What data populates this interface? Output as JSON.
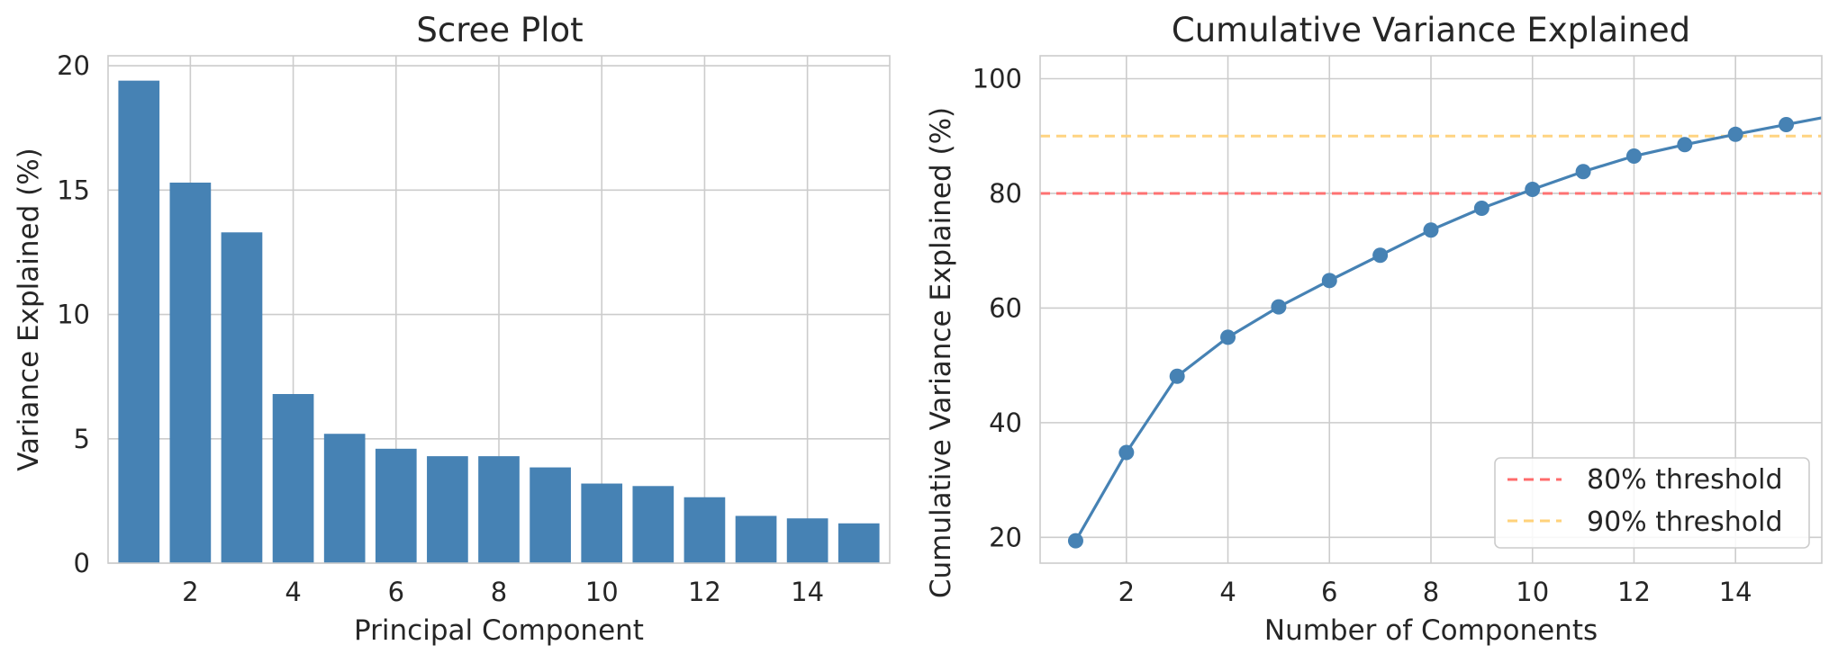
{
  "chart_data": [
    {
      "type": "bar",
      "title": "Scree Plot",
      "xlabel": "Principal Component",
      "ylabel": "Variance Explained (%)",
      "categories": [
        1,
        2,
        3,
        4,
        5,
        6,
        7,
        8,
        9,
        10,
        11,
        12,
        13,
        14,
        15
      ],
      "values": [
        19.4,
        15.3,
        13.3,
        6.8,
        5.2,
        4.6,
        4.3,
        4.3,
        3.85,
        3.2,
        3.1,
        2.65,
        1.9,
        1.8,
        1.6
      ],
      "xlim": [
        0.4,
        15.6
      ],
      "ylim": [
        0,
        20.4
      ],
      "xticks": [
        2,
        4,
        6,
        8,
        10,
        12,
        14
      ],
      "yticks": [
        0,
        5,
        10,
        15,
        20
      ],
      "grid": true,
      "colors": {
        "bar": "#4682b4"
      }
    },
    {
      "type": "line",
      "title": "Cumulative Variance Explained",
      "xlabel": "Number of Components",
      "ylabel": "Cumulative Variance Explained (%)",
      "x": [
        1,
        2,
        3,
        4,
        5,
        6,
        7,
        8,
        9,
        10,
        11,
        12,
        13,
        14,
        15
      ],
      "y": [
        19.4,
        34.8,
        48.1,
        54.9,
        60.2,
        64.8,
        69.2,
        73.6,
        77.4,
        80.7,
        83.8,
        86.5,
        88.5,
        90.3,
        92.0
      ],
      "xlim": [
        0.3,
        15.7
      ],
      "ylim": [
        15.5,
        104
      ],
      "xticks": [
        2,
        4,
        6,
        8,
        10,
        12,
        14
      ],
      "yticks": [
        20,
        40,
        60,
        80,
        100
      ],
      "grid": true,
      "colors": {
        "line": "#4682b4"
      },
      "thresholds": [
        {
          "y": 80,
          "label": "80% threshold",
          "color": "#ff6b6b"
        },
        {
          "y": 90,
          "label": "90% threshold",
          "color": "#ffd27a"
        }
      ],
      "legend": "lower-right"
    }
  ]
}
